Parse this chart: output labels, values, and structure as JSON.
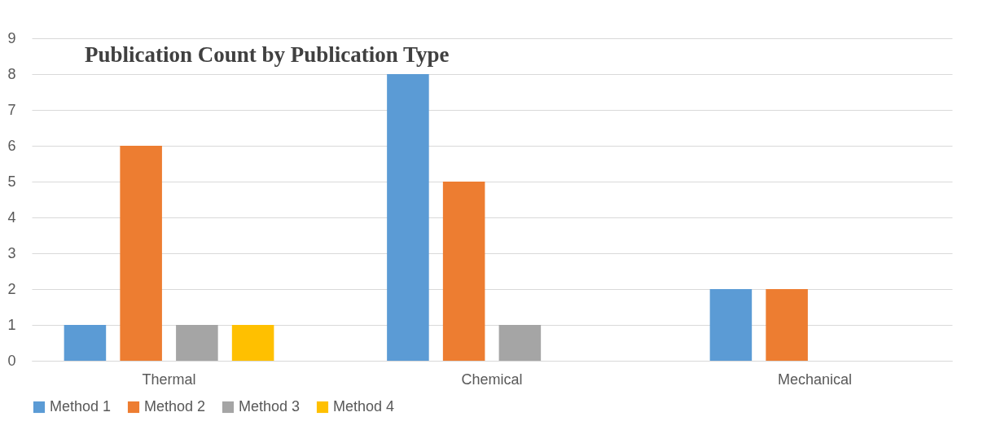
{
  "chart_data": {
    "type": "bar",
    "title": "Publication Count by Publication Type",
    "categories": [
      "Thermal",
      "Chemical",
      "Mechanical"
    ],
    "series": [
      {
        "name": "Method 1",
        "color": "#5b9bd5",
        "values": [
          1,
          8,
          2
        ]
      },
      {
        "name": "Method 2",
        "color": "#ed7d31",
        "values": [
          6,
          5,
          2
        ]
      },
      {
        "name": "Method 3",
        "color": "#a5a5a5",
        "values": [
          1,
          1,
          0
        ]
      },
      {
        "name": "Method 4",
        "color": "#ffc000",
        "values": [
          1,
          0,
          0
        ]
      }
    ],
    "ylim": [
      0,
      9
    ],
    "yticks": [
      0,
      1,
      2,
      3,
      4,
      5,
      6,
      7,
      8,
      9
    ],
    "grid": "y",
    "legend": "bottom"
  }
}
